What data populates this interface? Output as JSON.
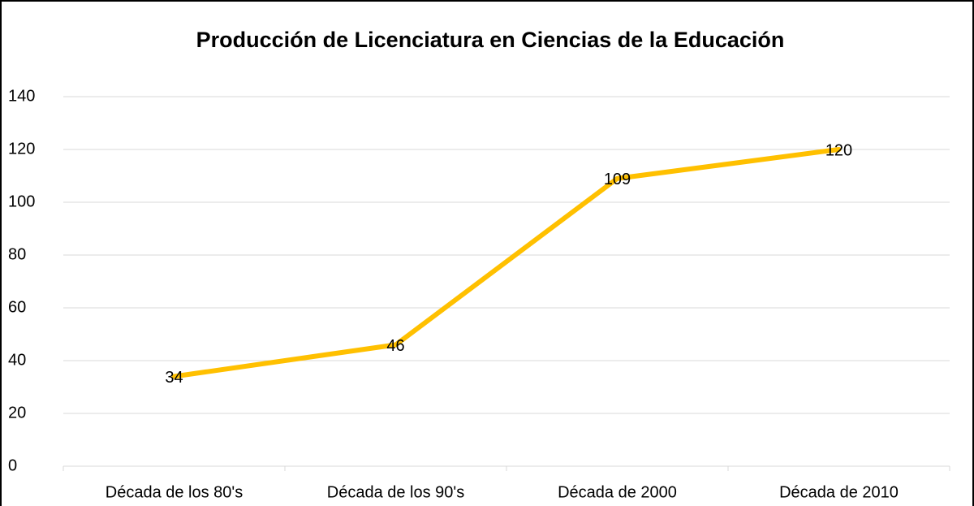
{
  "chart_data": {
    "type": "line",
    "title": "Producción de Licenciatura en Ciencias de la Educación",
    "categories": [
      "Década de los 80's",
      "Década de los 90's",
      "Década de 2000",
      "Década de 2010"
    ],
    "values": [
      34,
      46,
      109,
      120
    ],
    "color": "#ffc000",
    "ylim": [
      0,
      140
    ],
    "yticks": [
      0,
      20,
      40,
      60,
      80,
      100,
      120,
      140
    ],
    "grid": true
  }
}
